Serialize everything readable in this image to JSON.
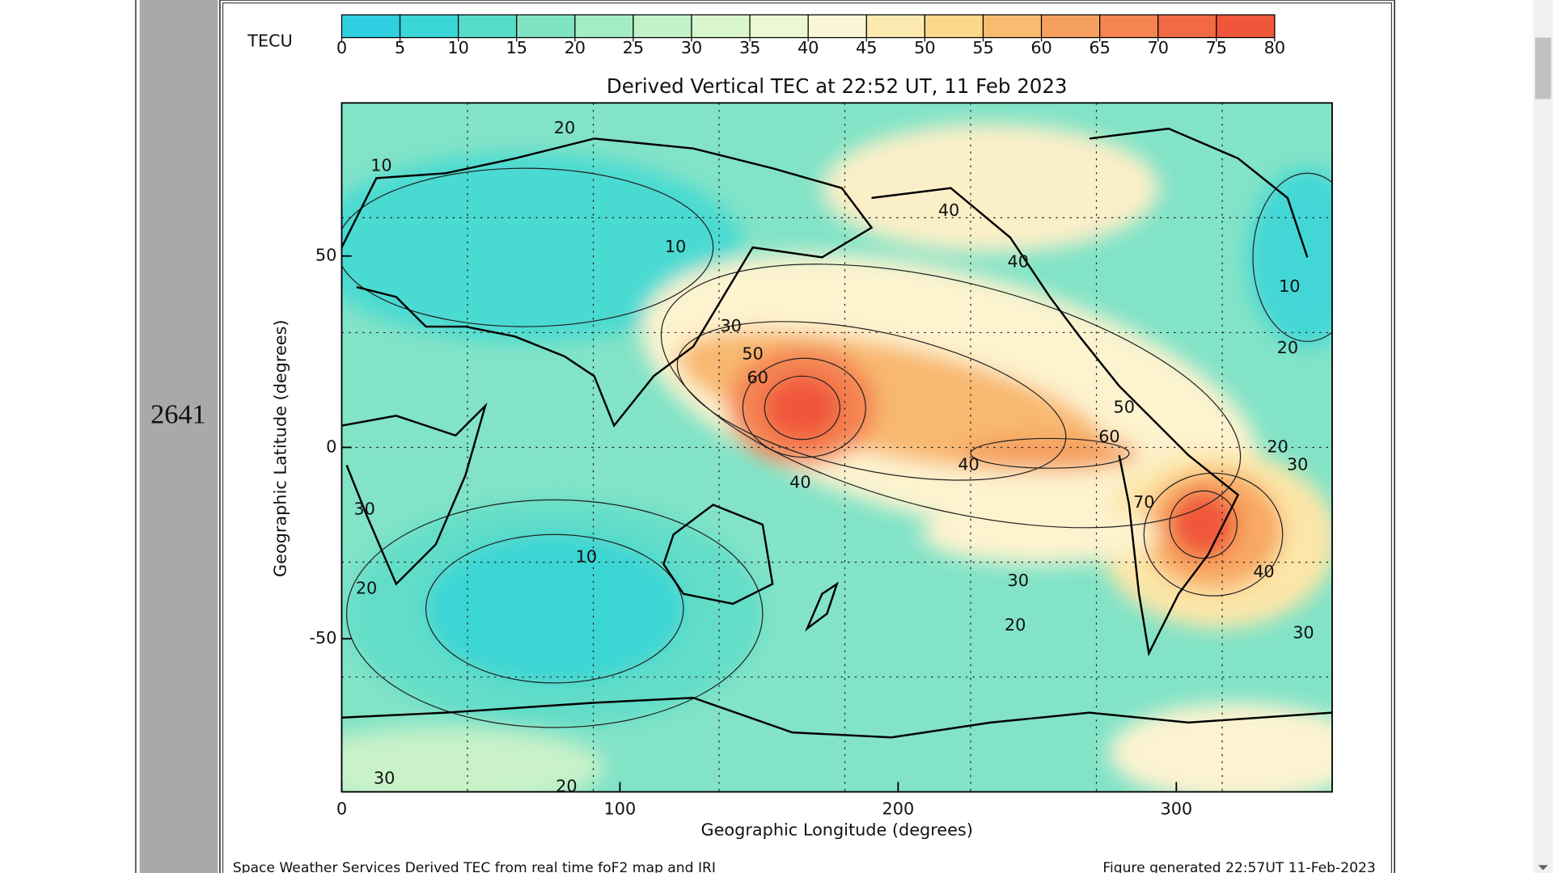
{
  "row_label": "2641",
  "figure": {
    "colorbar": {
      "label": "TECU",
      "ticks": [
        0,
        5,
        10,
        15,
        20,
        25,
        30,
        35,
        40,
        45,
        50,
        55,
        60,
        65,
        70,
        75,
        80
      ],
      "colors": [
        "#2ecfe0",
        "#3ad6d8",
        "#56dcc8",
        "#80e4c4",
        "#a4ecc4",
        "#c2f2c8",
        "#daf6cc",
        "#ecf8d4",
        "#fcf6d8",
        "#fdeab0",
        "#fbd88a",
        "#f8bc70",
        "#f6a060",
        "#f48452",
        "#f26a44",
        "#f0563a"
      ]
    },
    "title": "Derived Vertical TEC at 22:52 UT, 11 Feb 2023",
    "x_axis": {
      "label": "Geographic Longitude (degrees)",
      "ticks": [
        0,
        100,
        200,
        300
      ],
      "lim": [
        0,
        356
      ]
    },
    "y_axis": {
      "label": "Geographic Latitude (degrees)",
      "ticks": [
        -50,
        0,
        50
      ],
      "lim": [
        -90,
        90
      ]
    },
    "contour_labels": [
      20,
      10,
      40,
      10,
      40,
      10,
      30,
      50,
      60,
      20,
      50,
      60,
      40,
      20,
      30,
      40,
      70,
      30,
      10,
      30,
      40,
      20,
      20,
      30,
      30,
      20
    ],
    "footer_left": "Space Weather Services Derived TEC from real time foF2 map and IRI",
    "footer_right": "Figure generated 22:57UT 11-Feb-2023"
  }
}
